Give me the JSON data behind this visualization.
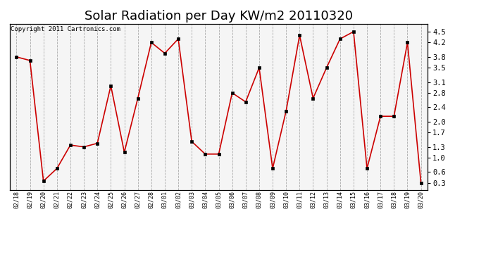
{
  "title": "Solar Radiation per Day KW/m2 20110320",
  "copyright": "Copyright 2011 Cartronics.com",
  "labels": [
    "02/18",
    "02/19",
    "02/20",
    "02/21",
    "02/22",
    "02/23",
    "02/24",
    "02/25",
    "02/26",
    "02/27",
    "02/28",
    "03/01",
    "03/02",
    "03/03",
    "03/04",
    "03/05",
    "03/06",
    "03/07",
    "03/08",
    "03/09",
    "03/10",
    "03/11",
    "03/12",
    "03/13",
    "03/14",
    "03/15",
    "03/16",
    "03/17",
    "03/18",
    "03/19",
    "03/20"
  ],
  "values": [
    3.8,
    3.7,
    0.35,
    0.7,
    1.35,
    1.3,
    1.4,
    3.0,
    1.15,
    2.65,
    4.2,
    3.9,
    4.3,
    1.45,
    1.1,
    1.1,
    2.8,
    2.55,
    3.5,
    0.7,
    2.3,
    4.4,
    2.65,
    3.5,
    4.3,
    4.5,
    0.7,
    2.15,
    2.15,
    4.2,
    0.3
  ],
  "yticks": [
    0.3,
    0.6,
    1.0,
    1.3,
    1.7,
    2.0,
    2.4,
    2.8,
    3.1,
    3.5,
    3.8,
    4.2,
    4.5
  ],
  "ylim": [
    0.1,
    4.72
  ],
  "line_color": "#cc0000",
  "marker_color": "#000000",
  "bg_color": "#f5f5f5",
  "grid_color": "#aaaaaa",
  "title_fontsize": 13,
  "label_fontsize": 6,
  "ytick_fontsize": 7.5
}
